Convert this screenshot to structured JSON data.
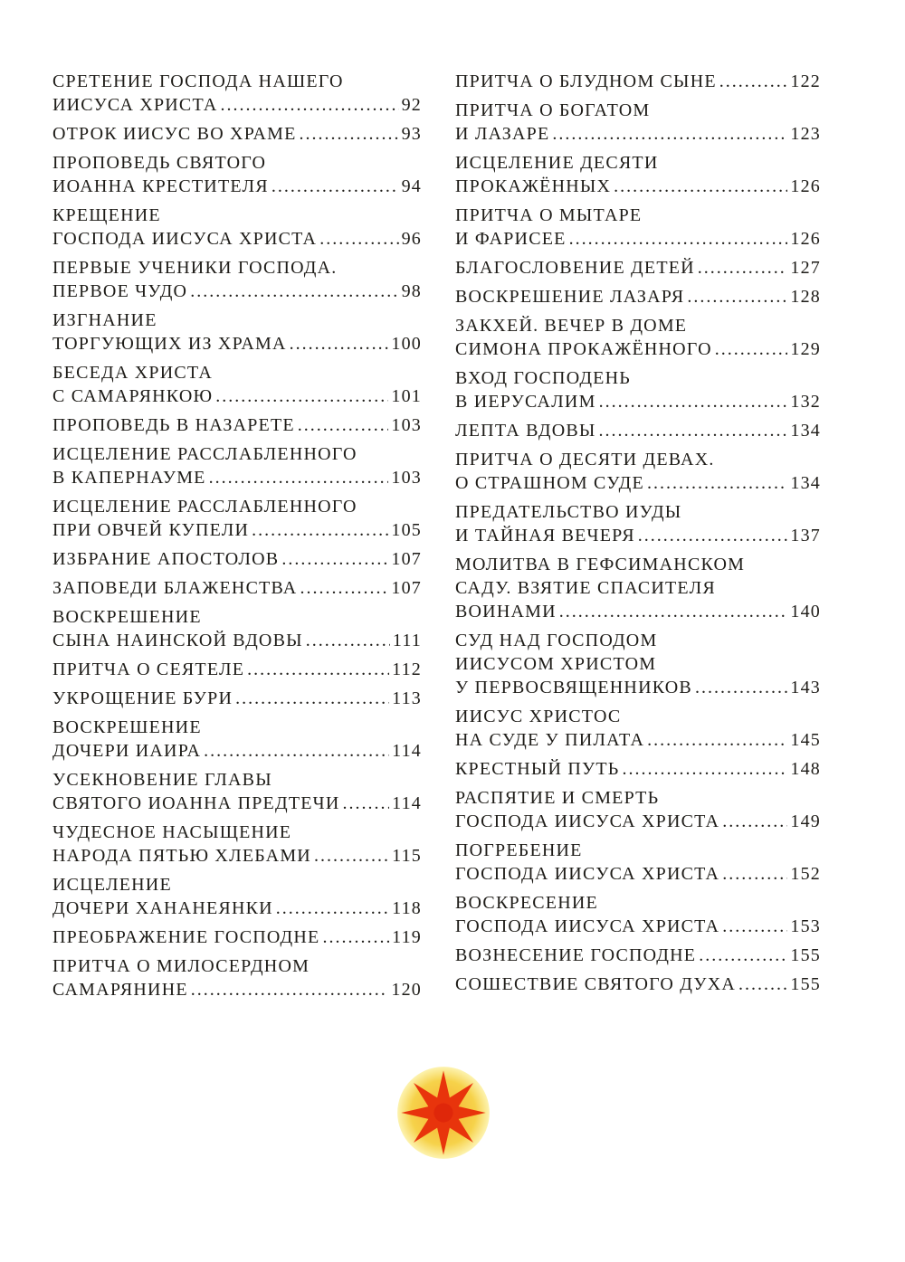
{
  "toc": {
    "left": [
      {
        "lines": [
          "СРЕТЕНИЕ ГОСПОДА НАШЕГО",
          "ИИСУСА ХРИСТА"
        ],
        "page": "92"
      },
      {
        "lines": [
          "ОТРОК ИИСУС ВО ХРАМЕ"
        ],
        "page": "93"
      },
      {
        "lines": [
          "ПРОПОВЕДЬ СВЯТОГО",
          "ИОАННА КРЕСТИТЕЛЯ"
        ],
        "page": "94"
      },
      {
        "lines": [
          "КРЕЩЕНИЕ",
          "ГОСПОДА ИИСУСА ХРИСТА"
        ],
        "page": "96"
      },
      {
        "lines": [
          "ПЕРВЫЕ УЧЕНИКИ ГОСПОДА.",
          "ПЕРВОЕ ЧУДО"
        ],
        "page": "98"
      },
      {
        "lines": [
          "ИЗГНАНИЕ",
          "ТОРГУЮЩИХ ИЗ ХРАМА"
        ],
        "page": "100"
      },
      {
        "lines": [
          "БЕСЕДА ХРИСТА",
          "С САМАРЯНКОЮ"
        ],
        "page": "101"
      },
      {
        "lines": [
          "ПРОПОВЕДЬ В НАЗАРЕТЕ"
        ],
        "page": "103"
      },
      {
        "lines": [
          "ИСЦЕЛЕНИЕ РАССЛАБЛЕННОГО",
          "В КАПЕРНАУМЕ"
        ],
        "page": "103"
      },
      {
        "lines": [
          "ИСЦЕЛЕНИЕ РАССЛАБЛЕННОГО",
          "ПРИ ОВЧЕЙ КУПЕЛИ"
        ],
        "page": "105"
      },
      {
        "lines": [
          "ИЗБРАНИЕ АПОСТОЛОВ"
        ],
        "page": "107"
      },
      {
        "lines": [
          "ЗАПОВЕДИ БЛАЖЕНСТВА"
        ],
        "page": "107"
      },
      {
        "lines": [
          "ВОСКРЕШЕНИЕ",
          "СЫНА НАИНСКОЙ ВДОВЫ"
        ],
        "page": "111"
      },
      {
        "lines": [
          "ПРИТЧА О СЕЯТЕЛЕ"
        ],
        "page": "112"
      },
      {
        "lines": [
          "УКРОЩЕНИЕ БУРИ"
        ],
        "page": "113"
      },
      {
        "lines": [
          "ВОСКРЕШЕНИЕ",
          "ДОЧЕРИ ИАИРА"
        ],
        "page": "114"
      },
      {
        "lines": [
          "УСЕКНОВЕНИЕ ГЛАВЫ",
          "СВЯТОГО ИОАННА ПРЕДТЕЧИ"
        ],
        "page": "114"
      },
      {
        "lines": [
          "ЧУДЕСНОЕ НАСЫЩЕНИЕ",
          "НАРОДА ПЯТЬЮ ХЛЕБАМИ"
        ],
        "page": "115"
      },
      {
        "lines": [
          "ИСЦЕЛЕНИЕ",
          "ДОЧЕРИ ХАНАНЕЯНКИ"
        ],
        "page": "118"
      },
      {
        "lines": [
          "ПРЕОБРАЖЕНИЕ ГОСПОДНЕ"
        ],
        "page": "119"
      },
      {
        "lines": [
          "ПРИТЧА О МИЛОСЕРДНОМ",
          "САМАРЯНИНЕ"
        ],
        "page": "120"
      }
    ],
    "right": [
      {
        "lines": [
          "ПРИТЧА О БЛУДНОМ СЫНЕ"
        ],
        "page": "122"
      },
      {
        "lines": [
          "ПРИТЧА О БОГАТОМ",
          "И ЛАЗАРЕ"
        ],
        "page": "123"
      },
      {
        "lines": [
          "ИСЦЕЛЕНИЕ ДЕСЯТИ",
          "ПРОКАЖЁННЫХ"
        ],
        "page": "126"
      },
      {
        "lines": [
          "ПРИТЧА О МЫТАРЕ",
          "И ФАРИСЕЕ"
        ],
        "page": "126"
      },
      {
        "lines": [
          "БЛАГОСЛОВЕНИЕ ДЕТЕЙ"
        ],
        "page": "127"
      },
      {
        "lines": [
          "ВОСКРЕШЕНИЕ ЛАЗАРЯ"
        ],
        "page": "128"
      },
      {
        "lines": [
          "ЗАКХЕЙ. ВЕЧЕР В ДОМЕ",
          "СИМОНА ПРОКАЖЁННОГО"
        ],
        "page": "129"
      },
      {
        "lines": [
          "ВХОД ГОСПОДЕНЬ",
          "В ИЕРУСАЛИМ"
        ],
        "page": "132"
      },
      {
        "lines": [
          "ЛЕПТА ВДОВЫ"
        ],
        "page": "134"
      },
      {
        "lines": [
          "ПРИТЧА О ДЕСЯТИ ДЕВАХ.",
          "О СТРАШНОМ СУДЕ"
        ],
        "page": "134"
      },
      {
        "lines": [
          "ПРЕДАТЕЛЬСТВО ИУДЫ",
          "И ТАЙНАЯ ВЕЧЕРЯ"
        ],
        "page": "137"
      },
      {
        "lines": [
          "МОЛИТВА В ГЕФСИМАНСКОМ",
          "САДУ. ВЗЯТИЕ СПАСИТЕЛЯ",
          "ВОИНАМИ"
        ],
        "page": "140"
      },
      {
        "lines": [
          "СУД НАД ГОСПОДОМ",
          "ИИСУСОМ ХРИСТОМ",
          "У ПЕРВОСВЯЩЕННИКОВ"
        ],
        "page": "143"
      },
      {
        "lines": [
          "ИИСУС ХРИСТОС",
          "НА СУДЕ У ПИЛАТА"
        ],
        "page": "145"
      },
      {
        "lines": [
          "КРЕСТНЫЙ ПУТЬ"
        ],
        "page": "148"
      },
      {
        "lines": [
          "РАСПЯТИЕ И СМЕРТЬ",
          "ГОСПОДА ИИСУСА ХРИСТА"
        ],
        "page": "149"
      },
      {
        "lines": [
          "ПОГРЕБЕНИЕ",
          "ГОСПОДА ИИСУСА ХРИСТА"
        ],
        "page": "152"
      },
      {
        "lines": [
          "ВОСКРЕСЕНИЕ",
          "ГОСПОДА ИИСУСА ХРИСТА"
        ],
        "page": "153"
      },
      {
        "lines": [
          "ВОЗНЕСЕНИЕ ГОСПОДНЕ"
        ],
        "page": "155"
      },
      {
        "lines": [
          "СОШЕСТВИЕ СВЯТОГО ДУХА"
        ],
        "page": "155"
      }
    ]
  },
  "ornament": {
    "icon": "eight-pointed-star-icon",
    "colors": {
      "star": "#e8340c",
      "halo": "#f6d24a"
    }
  }
}
